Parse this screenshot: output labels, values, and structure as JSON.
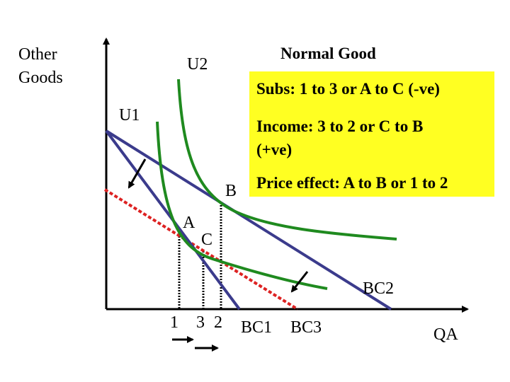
{
  "axis": {
    "y_label_line1": "Other",
    "y_label_line2": "Goods",
    "x_label": "QA"
  },
  "title": "Normal Good",
  "curves": {
    "u1": "U1",
    "u2": "U2",
    "bc1": "BC1",
    "bc2": "BC2",
    "bc3": "BC3"
  },
  "points": {
    "a": "A",
    "b": "B",
    "c": "C"
  },
  "quantities": {
    "q1": "1",
    "q3": "3",
    "q2": "2"
  },
  "effects": {
    "subs": "Subs: 1 to 3 or A to C (-ve)",
    "income_line1": "Income: 3 to 2 or C to B",
    "income_line2": "(+ve)",
    "price": "Price effect: A to B or 1 to 2"
  },
  "colors": {
    "budget_line": "#3b3b8c",
    "indifference_curve": "#1f8a1f",
    "compensated_line": "#dd2222",
    "box": "#ffff22"
  }
}
